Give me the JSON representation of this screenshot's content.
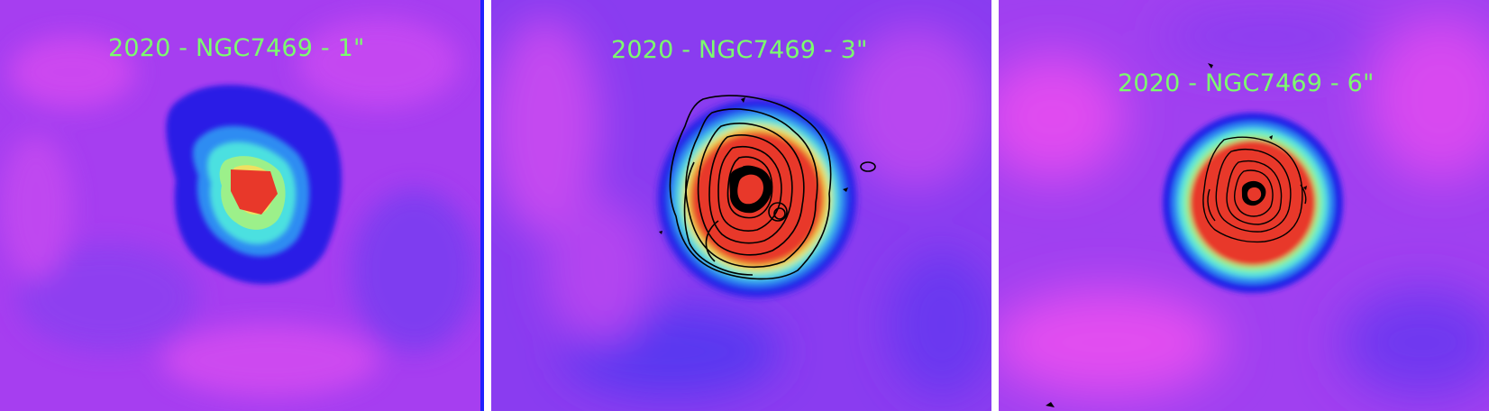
{
  "panels": [
    {
      "label": "2020 - NGC7469 - 1\""
    },
    {
      "label": "2020 - NGC7469 - 3\""
    },
    {
      "label": "2020 - NGC7469 - 6\""
    }
  ],
  "colors": {
    "label_text": "#7CFC6E",
    "background_magenta": "#c040f0",
    "background_blue": "#5a3cf0",
    "core_red": "#e8382a",
    "contour": "#000000"
  }
}
